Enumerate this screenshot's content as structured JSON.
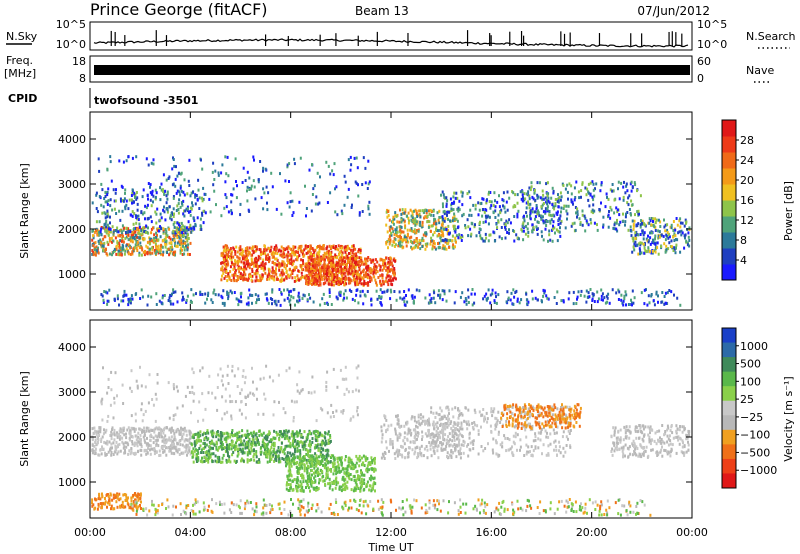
{
  "header": {
    "title": "Prince George (fitACF)",
    "beam": "Beam 13",
    "date": "07/Jun/2012"
  },
  "noise_panel": {
    "left_label": "N.Sky",
    "right_label": "N.Search",
    "tick_top": "10^5",
    "tick_bottom": "10^0"
  },
  "freq_panel": {
    "label_top": "Freq.",
    "label_unit": "[MHz]",
    "tick_top": "18",
    "tick_bottom": "8",
    "right_label": "Nave",
    "right_tick_top": "60",
    "right_tick_bottom": "0"
  },
  "cpid": {
    "label": "CPID",
    "program": "twofsound  -3501"
  },
  "chart_data": [
    {
      "type": "heatmap",
      "title": "",
      "ylabel": "Slant Range [km]",
      "xlabel": "Time UT",
      "ylim": [
        200,
        4600
      ],
      "yticks": [
        1000,
        2000,
        3000,
        4000
      ],
      "xticks": [
        "00:00",
        "04:00",
        "08:00",
        "12:00",
        "16:00",
        "20:00",
        "00:00"
      ],
      "colorbar": {
        "label": "Power [dB]",
        "ticks": [
          "4",
          "8",
          "12",
          "16",
          "20",
          "24",
          "28"
        ],
        "colors": [
          "#1a1aff",
          "#1f3fc0",
          "#2c7a9a",
          "#4fa37a",
          "#8ec44a",
          "#f0c020",
          "#f49a18",
          "#f06a18",
          "#ee3a18",
          "#e01818"
        ]
      }
    },
    {
      "type": "heatmap",
      "title": "",
      "ylabel": "Slant Range [km]",
      "xlabel": "Time UT",
      "ylim": [
        200,
        4600
      ],
      "yticks": [
        1000,
        2000,
        3000,
        4000
      ],
      "xticks": [
        "00:00",
        "04:00",
        "08:00",
        "12:00",
        "16:00",
        "20:00",
        "00:00"
      ],
      "colorbar": {
        "label": "Velocity [m s⁻¹]",
        "ticks": [
          "1000",
          "500",
          "100",
          "25",
          "−25",
          "−100",
          "−500",
          "−1000"
        ],
        "colors": [
          "#1a40c8",
          "#2c6aa8",
          "#3f8a5a",
          "#5ab84a",
          "#8ad04a",
          "#c8c8c8",
          "#b8b8b8",
          "#f0a020",
          "#f07018",
          "#ee4018",
          "#e01818"
        ]
      }
    }
  ]
}
